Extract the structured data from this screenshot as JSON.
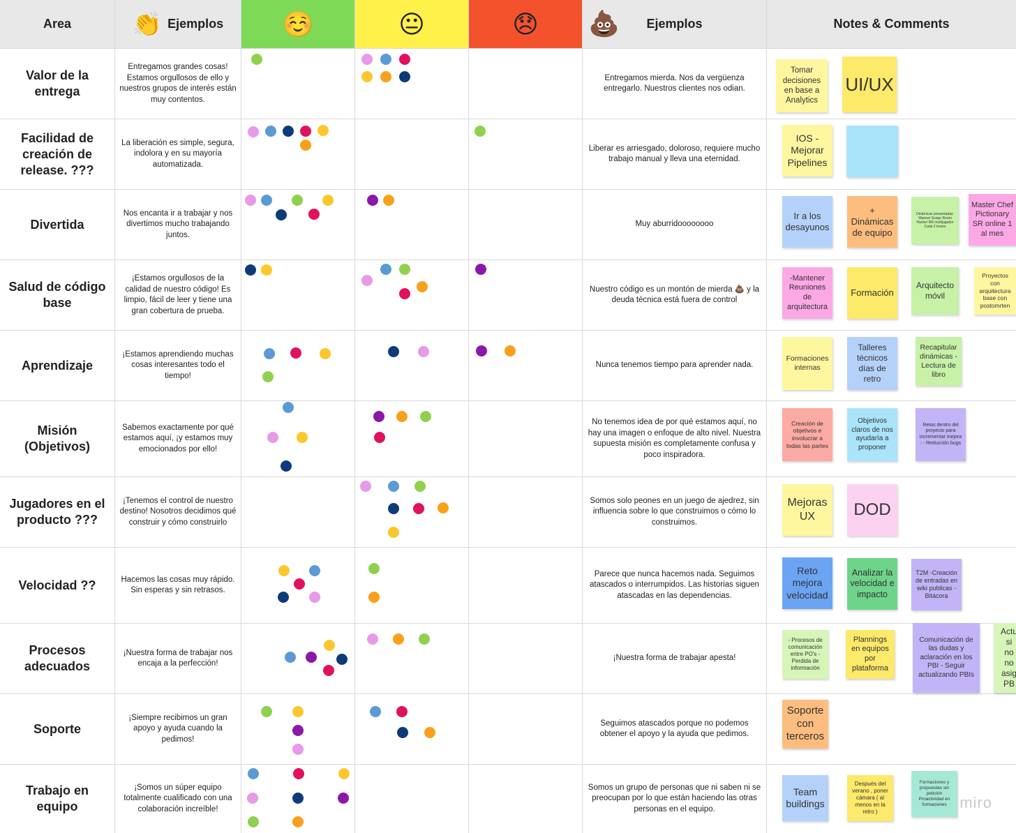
{
  "header": {
    "area": "Area",
    "ejemplos_left": "Ejemplos",
    "ejemplos_right": "Ejemplos",
    "notes": "Notes & Comments",
    "clap_emoji": "👏",
    "happy_emoji": "☺️",
    "neutral_emoji": "😐",
    "sad_emoji": "😞",
    "poop_emoji": "💩"
  },
  "colors": {
    "green": "#7ed957",
    "yellow": "#fff04a",
    "red": "#f4522d",
    "dot_pink": "#e69ae8",
    "dot_blue": "#5b9bd5",
    "dot_navy": "#0d3b7a",
    "dot_magenta": "#e0115f",
    "dot_yellow": "#fcc72c",
    "dot_orange": "#f9a01b",
    "dot_green": "#8fd14f",
    "dot_purple": "#8b18a8"
  },
  "rows": [
    {
      "area": "Valor de la entrega",
      "good": "Entregamos grandes cosas! Estamos orgullosos de ello y nuestros grupos de interés están muy contentos.",
      "bad": "Entregamos mierda. Nos da vergüenza entregarlo. Nuestros clientes nos odian."
    },
    {
      "area": "Facilidad de creación de release. ???",
      "good": "La liberación es simple, segura, indolora y en su mayoría automatizada.",
      "bad": "Liberar es arriesgado, doloroso, requiere mucho trabajo manual y lleva una eternidad."
    },
    {
      "area": "Divertida",
      "good": "Nos encanta ir a trabajar y nos divertimos mucho trabajando juntos.",
      "bad": "Muy aburridoooooooo"
    },
    {
      "area": "Salud de código base",
      "good": "¡Estamos orgullosos de la calidad de nuestro código! Es limpio, fácil de leer y tiene una gran cobertura de prueba.",
      "bad": "Nuestro código es un montón de mierda 💩 y la deuda técnica está fuera de control"
    },
    {
      "area": "Aprendizaje",
      "good": "¡Estamos aprendiendo muchas cosas interesantes todo el tiempo!",
      "bad": "Nunca tenemos tiempo para aprender nada."
    },
    {
      "area": "Misión (Objetivos)",
      "good": "Sabemos exactamente por qué estamos aquí, ¡y estamos muy emocionados por ello!",
      "bad": "No tenemos idea de por qué estamos aquí, no hay una imagen o enfoque de alto nivel. Nuestra supuesta misión es completamente confusa y poco inspiradora."
    },
    {
      "area": "Jugadores en el producto ???",
      "good": "¡Tenemos el control de nuestro destino! Nosotros decidimos qué construir y cómo construirlo",
      "bad": "Somos solo peones en un juego de ajedrez, sin influencia sobre lo que construimos o cómo lo construimos."
    },
    {
      "area": "Velocidad ??",
      "good": "Hacemos las cosas muy rápido. Sin esperas y sin retrasos.",
      "bad": "Parece que nunca hacemos nada. Seguimos atascados o interrumpidos. Las historias siguen atascadas en las dependencias."
    },
    {
      "area": "Procesos adecuados",
      "good": "¡Nuestra forma de trabajar nos encaja a la perfección!",
      "bad": "¡Nuestra forma de trabajar apesta!"
    },
    {
      "area": "Soporte",
      "good": "¡Siempre recibimos un gran apoyo y ayuda cuando la pedimos!",
      "bad": "Seguimos atascados porque no podemos obtener el apoyo y la ayuda que pedimos."
    },
    {
      "area": "Trabajo en equipo",
      "good": "¡Somos un súper equipo totalmente cualificado con una colaboración increíble!",
      "bad": "Somos un grupo de personas que ni saben ni se preocupan por lo que están haciendo las otras personas en el equipo."
    }
  ],
  "notes": [
    {
      "text": "Tomar decisiones en base a Analytics",
      "color": "#fff6a0"
    },
    {
      "text": "UI/UX",
      "color": "#fde96a"
    },
    {
      "text": "IOS - Mejorar Pipelines",
      "color": "#fff6a0"
    },
    {
      "text": "",
      "color": "#a9e4fb"
    },
    {
      "text": "Ir a los desayunos",
      "color": "#b4d1fa"
    },
    {
      "text": "+ Dinámicas de equipo",
      "color": "#fdbd7e"
    },
    {
      "text": "Dinámicas presentadas: Wanner Scope Room Hacker RR multijugador Cada 2 treses",
      "color": "#c6f1a7"
    },
    {
      "text": "Master Chef Pictionary SR online 1 al mes",
      "color": "#fca8e6"
    },
    {
      "text": "-Mantener Reuniones de arquitectura",
      "color": "#fca8e6"
    },
    {
      "text": "Formación",
      "color": "#fde96a"
    },
    {
      "text": "Arquitecto móvil",
      "color": "#c6f1a7"
    },
    {
      "text": "Proyectos con arquitectura base con postomrten",
      "color": "#fff6a0"
    },
    {
      "text": "Formaciones internas",
      "color": "#fff6a0"
    },
    {
      "text": "Talleres técnicos días de retro",
      "color": "#b4d1fa"
    },
    {
      "text": "Recapitular dinámicas - Lectura de libro",
      "color": "#c6f1a7"
    },
    {
      "text": "Creación de objetivos e involucrar a todas las partes",
      "color": "#fcaaa4"
    },
    {
      "text": "Objetivos claros de nos ayudaría a proponer",
      "color": "#a9e4fb"
    },
    {
      "text": "Retos dentro del proyecto para incrementar mejora : - Reducción bugs",
      "color": "#c3b4f7"
    },
    {
      "text": "Mejoras UX",
      "color": "#fff6a0"
    },
    {
      "text": "DOD",
      "color": "#fdd2f0"
    },
    {
      "text": "Reto mejora velocidad",
      "color": "#6ba4f3"
    },
    {
      "text": "Analizar la velocidad e impacto",
      "color": "#6ed48a"
    },
    {
      "text": "T2M -Creación de entradas en wiki publicas - Bitácora",
      "color": "#c3b4f7"
    },
    {
      "text": "- Procesos de comunicación entre PO's - Perdida de información",
      "color": "#d6f5b8"
    },
    {
      "text": "Plannings en equipos por plataforma",
      "color": "#fde96a"
    },
    {
      "text": "Comunicación de las dudas y aclaración en los PBI - Seguir actualizando PBIs",
      "color": "#c3b4f7"
    },
    {
      "text": "Actu si no no asig PB",
      "color": "#d6f5b8"
    },
    {
      "text": "Soporte con terceros",
      "color": "#fdbd7e"
    },
    {
      "text": "Team buildings",
      "color": "#b4d1fa"
    },
    {
      "text": "Después del verano , poner cámara ( al menos en la retro )",
      "color": "#fde96a"
    },
    {
      "text": "Formaciones y propuestas sin petición Proactividad en formaciones",
      "color": "#a6e8d6"
    }
  ],
  "watermark": "miro"
}
